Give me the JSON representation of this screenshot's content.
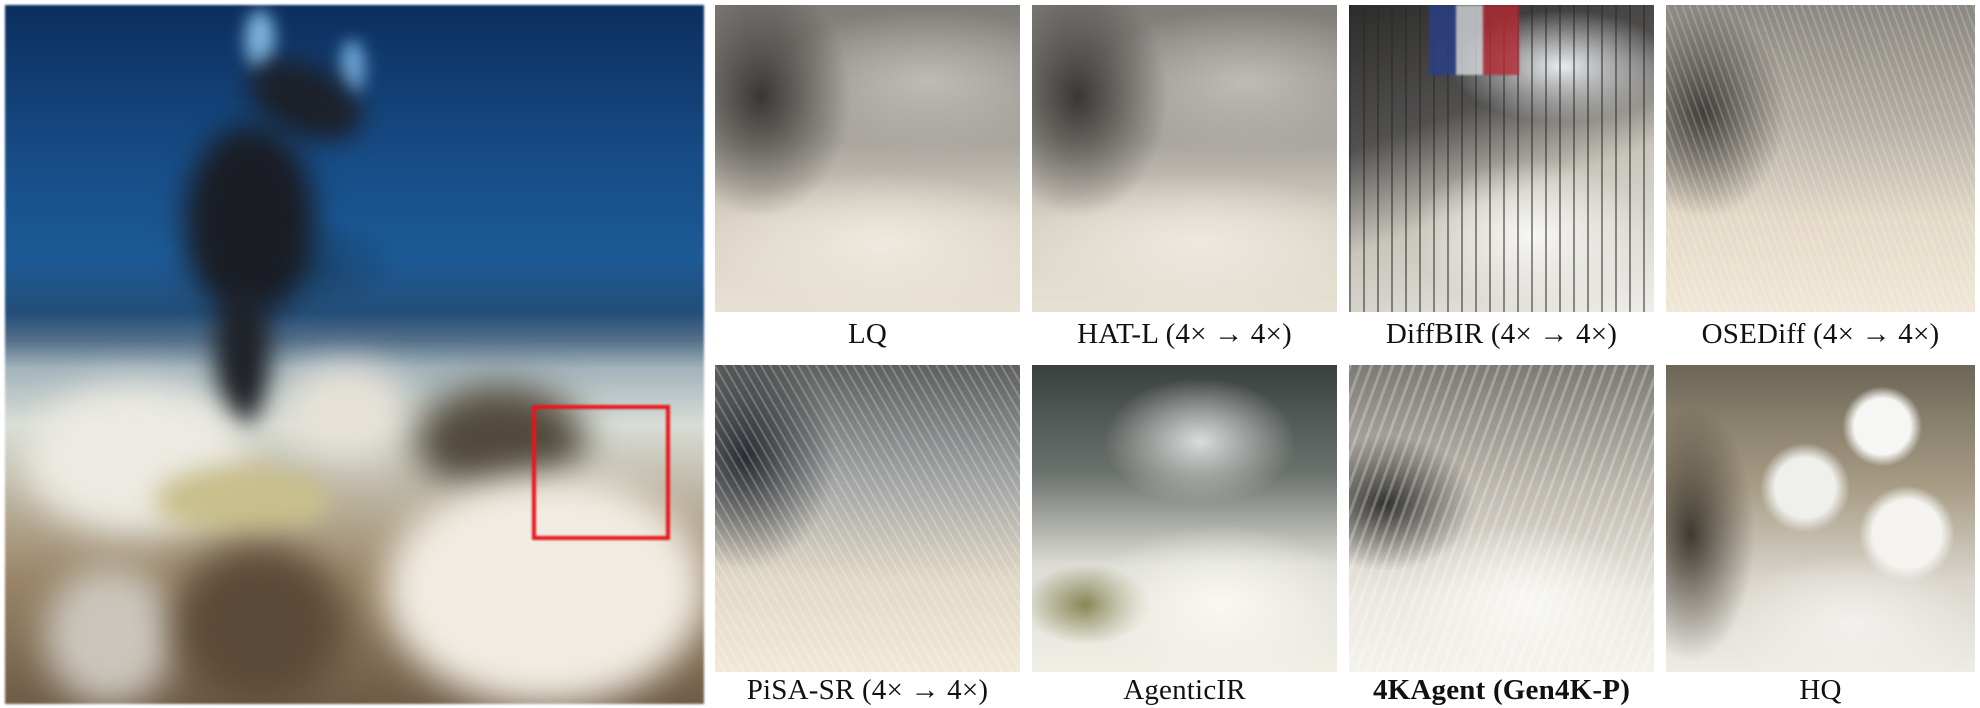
{
  "figure": {
    "main_image": {
      "description_icon": "underwater-scene-photo",
      "highlight_box_color": "#e8151b"
    },
    "panels": [
      {
        "id": "lq",
        "label": "LQ",
        "bold": false
      },
      {
        "id": "hat",
        "label": "HAT-L (4× → 4×)",
        "bold": false
      },
      {
        "id": "diffbir",
        "label": "DiffBIR (4× → 4×)",
        "bold": false
      },
      {
        "id": "osediff",
        "label": "OSEDiff (4× → 4×)",
        "bold": false
      },
      {
        "id": "pisa",
        "label": "PiSA-SR (4× → 4×)",
        "bold": false
      },
      {
        "id": "agentic",
        "label": "AgenticIR",
        "bold": false
      },
      {
        "id": "4kagent",
        "label": "4KAgent (Gen4K-P)",
        "bold": true
      },
      {
        "id": "hq",
        "label": "HQ",
        "bold": false
      }
    ]
  }
}
